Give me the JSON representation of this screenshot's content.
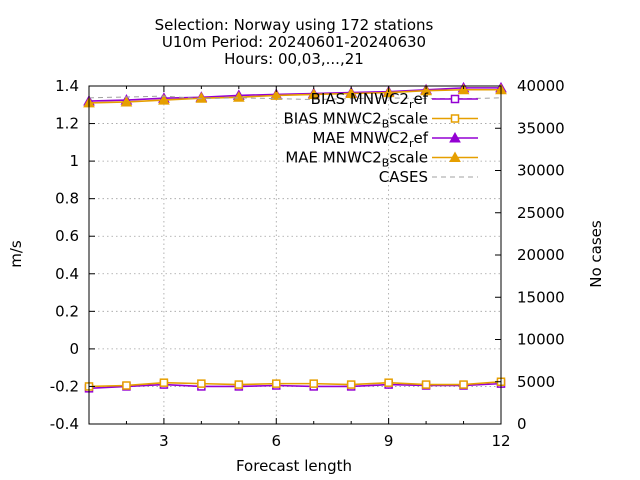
{
  "chart_data": {
    "type": "line",
    "title_lines": [
      "Selection: Norway using   172 stations",
      "U10m   Period: 20240601-20240630",
      "Hours: 00,03,...,21"
    ],
    "xlabel": "Forecast length",
    "ylabel": "m/s",
    "y2label": "No cases",
    "xlim": [
      1,
      12
    ],
    "ylim": [
      -0.4,
      1.4
    ],
    "y2lim": [
      0,
      40000
    ],
    "xticks": [
      3,
      6,
      9,
      12
    ],
    "yticks": [
      -0.4,
      -0.2,
      0,
      0.2,
      0.4,
      0.6,
      0.8,
      1,
      1.2,
      1.4
    ],
    "y2ticks": [
      0,
      5000,
      10000,
      15000,
      20000,
      25000,
      30000,
      35000,
      40000
    ],
    "grid": true,
    "legend_position": "top-right",
    "x": [
      1,
      2,
      3,
      4,
      5,
      6,
      7,
      8,
      9,
      10,
      11,
      12
    ],
    "series": [
      {
        "name": "BIAS MNWC2_ref",
        "legend_main": "BIAS MNWC2",
        "legend_sub": "r",
        "legend_tail": "ef",
        "axis": "y",
        "color": "#9400d3",
        "marker": "square",
        "values": [
          -0.21,
          -0.2,
          -0.19,
          -0.2,
          -0.2,
          -0.195,
          -0.2,
          -0.2,
          -0.19,
          -0.195,
          -0.195,
          -0.185
        ]
      },
      {
        "name": "BIAS MNWC2_Bscale",
        "legend_main": "BIAS MNWC2",
        "legend_sub": "B",
        "legend_tail": "scale",
        "axis": "y",
        "color": "#e69f00",
        "marker": "square",
        "values": [
          -0.2,
          -0.195,
          -0.18,
          -0.185,
          -0.19,
          -0.185,
          -0.185,
          -0.19,
          -0.18,
          -0.19,
          -0.19,
          -0.175
        ]
      },
      {
        "name": "MAE MNWC2_ref",
        "legend_main": "MAE MNWC2",
        "legend_sub": "r",
        "legend_tail": "ef",
        "axis": "y",
        "color": "#9400d3",
        "marker": "triangle",
        "values": [
          1.32,
          1.325,
          1.335,
          1.34,
          1.35,
          1.355,
          1.36,
          1.365,
          1.37,
          1.38,
          1.39,
          1.39
        ]
      },
      {
        "name": "MAE MNWC2_Bscale",
        "legend_main": "MAE MNWC2",
        "legend_sub": "B",
        "legend_tail": "scale",
        "axis": "y",
        "color": "#e69f00",
        "marker": "triangle",
        "values": [
          1.31,
          1.315,
          1.325,
          1.335,
          1.34,
          1.35,
          1.355,
          1.36,
          1.365,
          1.375,
          1.38,
          1.38
        ]
      },
      {
        "name": "CASES",
        "legend_main": "CASES",
        "legend_sub": "",
        "legend_tail": "",
        "axis": "y2",
        "color": "#a0a0a0",
        "marker": "none",
        "dashed": true,
        "values": [
          38600,
          38700,
          38800,
          38500,
          38600,
          38500,
          38400,
          38500,
          38600,
          38500,
          38500,
          38600
        ]
      }
    ]
  }
}
